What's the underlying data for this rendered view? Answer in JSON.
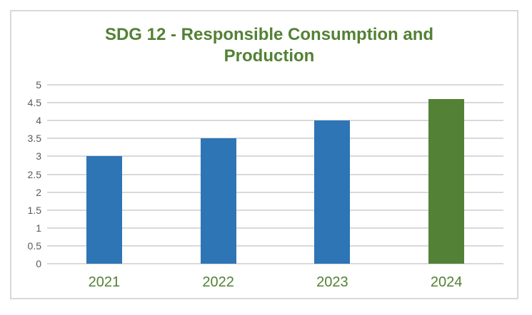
{
  "chart_data": {
    "type": "bar",
    "title": "SDG 12 - Responsible Consumption and Production",
    "categories": [
      "2021",
      "2022",
      "2023",
      "2024"
    ],
    "values": [
      3,
      3.5,
      4,
      4.6
    ],
    "xlabel": "",
    "ylabel": "",
    "ylim": [
      0,
      5
    ],
    "ytick_step": 0.5,
    "ytick_labels": [
      "0",
      "0.5",
      "1",
      "1.5",
      "2",
      "2.5",
      "3",
      "3.5",
      "4",
      "4.5",
      "5"
    ],
    "grid": true,
    "legend": "none",
    "bar_colors": [
      "#2E75B6",
      "#2E75B6",
      "#2E75B6",
      "#538135"
    ]
  },
  "colors": {
    "title_text": "#538135",
    "bar_default": "#2E75B6",
    "bar_highlight": "#538135",
    "axis_tick_text": "#595959",
    "category_text": "#538135",
    "gridline": "#D9D9D9",
    "frame_border": "#D9D9D9",
    "background": "#FFFFFF"
  }
}
